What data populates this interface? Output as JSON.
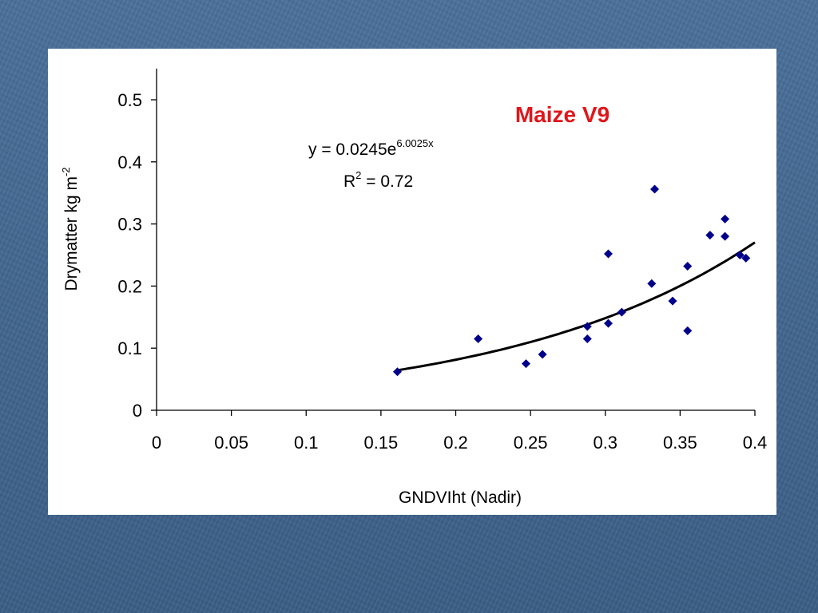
{
  "colors": {
    "background": "#42668f",
    "panel": "#ffffff",
    "title": "#e0161b",
    "marker": "#00008b",
    "trendline": "#000000",
    "axis": "#000000"
  },
  "chart_data": {
    "type": "scatter",
    "title": "Maize V9",
    "xlabel": "GNDVIht (Nadir)",
    "ylabel": "Drymatter kg m",
    "ylabel_superscript": "-2",
    "xlim": [
      0,
      0.4
    ],
    "ylim": [
      0,
      0.5
    ],
    "x_ticks": [
      "0",
      "0.05",
      "0.1",
      "0.15",
      "0.2",
      "0.25",
      "0.3",
      "0.35",
      "0.4"
    ],
    "y_ticks": [
      "0",
      "0.1",
      "0.2",
      "0.3",
      "0.4",
      "0.5"
    ],
    "grid": false,
    "legend": "none",
    "marker": "diamond",
    "points": [
      {
        "x": 0.161,
        "y": 0.062
      },
      {
        "x": 0.215,
        "y": 0.115
      },
      {
        "x": 0.247,
        "y": 0.075
      },
      {
        "x": 0.258,
        "y": 0.09
      },
      {
        "x": 0.288,
        "y": 0.115
      },
      {
        "x": 0.288,
        "y": 0.135
      },
      {
        "x": 0.302,
        "y": 0.14
      },
      {
        "x": 0.302,
        "y": 0.252
      },
      {
        "x": 0.311,
        "y": 0.158
      },
      {
        "x": 0.331,
        "y": 0.204
      },
      {
        "x": 0.333,
        "y": 0.356
      },
      {
        "x": 0.345,
        "y": 0.176
      },
      {
        "x": 0.355,
        "y": 0.128
      },
      {
        "x": 0.355,
        "y": 0.232
      },
      {
        "x": 0.37,
        "y": 0.282
      },
      {
        "x": 0.38,
        "y": 0.28
      },
      {
        "x": 0.38,
        "y": 0.308
      },
      {
        "x": 0.39,
        "y": 0.25
      },
      {
        "x": 0.394,
        "y": 0.245
      }
    ],
    "trendline": {
      "type": "exponential",
      "a": 0.0245,
      "b": 6.0025,
      "x_range": [
        0.161,
        0.4
      ]
    },
    "equation": {
      "main": "y = 0.0245e",
      "exponent": "6.0025x",
      "r2_prefix": "R",
      "r2_sup": "2",
      "r2_suffix": " = 0.72"
    }
  }
}
